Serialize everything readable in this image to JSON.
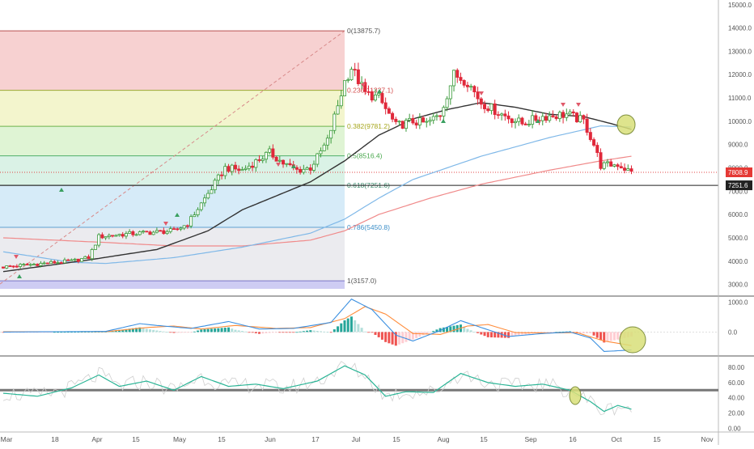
{
  "chart_data": [
    {
      "type": "candlestick",
      "panel": "price",
      "x_labels": [
        "Mar",
        "18",
        "Apr",
        "15",
        "May",
        "15",
        "Jun",
        "17",
        "Jul",
        "15",
        "Aug",
        "15",
        "Sep",
        "16",
        "Oct",
        "15",
        "Nov"
      ],
      "yticks": [
        "3000.0",
        "4000.0",
        "5000.0",
        "6000.0",
        "7000.0",
        "8000.0",
        "9000.0",
        "10000.0",
        "11000.0",
        "12000.0",
        "13000.0",
        "14000.0",
        "15000.0"
      ],
      "ylim": [
        2500,
        15200
      ],
      "close_anchors": [
        [
          0,
          3750
        ],
        [
          10,
          3880
        ],
        [
          20,
          4000
        ],
        [
          25,
          4150
        ],
        [
          28,
          5050
        ],
        [
          35,
          5150
        ],
        [
          45,
          5250
        ],
        [
          50,
          5300
        ],
        [
          54,
          5600
        ],
        [
          60,
          6900
        ],
        [
          65,
          8000
        ],
        [
          70,
          7900
        ],
        [
          78,
          8650
        ],
        [
          82,
          8200
        ],
        [
          86,
          7900
        ],
        [
          90,
          8000
        ],
        [
          95,
          9150
        ],
        [
          100,
          11700
        ],
        [
          102,
          12300
        ],
        [
          106,
          11200
        ],
        [
          110,
          11000
        ],
        [
          115,
          9800
        ],
        [
          120,
          10000
        ],
        [
          124,
          9900
        ],
        [
          128,
          10300
        ],
        [
          132,
          12000
        ],
        [
          136,
          11700
        ],
        [
          140,
          10800
        ],
        [
          146,
          10300
        ],
        [
          152,
          9900
        ],
        [
          158,
          10200
        ],
        [
          165,
          10300
        ],
        [
          170,
          10000
        ],
        [
          173,
          9000
        ],
        [
          175,
          8100
        ],
        [
          180,
          8150
        ],
        [
          184,
          7800
        ]
      ],
      "fib_levels": [
        {
          "ratio": "0",
          "price": 13875.7,
          "label": "0(13875.7)"
        },
        {
          "ratio": "0.236",
          "price": 11327.1,
          "label": "0.236(11327.1)"
        },
        {
          "ratio": "0.382",
          "price": 9781.2,
          "label": "0.382(9781.2)"
        },
        {
          "ratio": "0.5",
          "price": 8516.4,
          "label": "0.5(8516.4)"
        },
        {
          "ratio": "0.618",
          "price": 7251.6,
          "label": "0.618(7251.6)"
        },
        {
          "ratio": "0.786",
          "price": 5450.8,
          "label": "0.786(5450.8)"
        },
        {
          "ratio": "1",
          "price": 3157.0,
          "label": "1(3157.0)"
        }
      ],
      "price_labels": {
        "current": "7808.9",
        "fib_618": "7251.6"
      },
      "ma_black_anchors": [
        [
          0,
          3550
        ],
        [
          25,
          4050
        ],
        [
          45,
          4500
        ],
        [
          60,
          5300
        ],
        [
          70,
          6200
        ],
        [
          80,
          6800
        ],
        [
          90,
          7400
        ],
        [
          100,
          8300
        ],
        [
          110,
          9400
        ],
        [
          120,
          10100
        ],
        [
          130,
          10500
        ],
        [
          140,
          10800
        ],
        [
          150,
          10600
        ],
        [
          160,
          10300
        ],
        [
          170,
          10200
        ],
        [
          178,
          9900
        ],
        [
          184,
          9650
        ]
      ],
      "ma_blue_anchors": [
        [
          0,
          4400
        ],
        [
          20,
          3950
        ],
        [
          30,
          3900
        ],
        [
          50,
          4150
        ],
        [
          70,
          4600
        ],
        [
          90,
          5200
        ],
        [
          100,
          5800
        ],
        [
          110,
          6700
        ],
        [
          120,
          7500
        ],
        [
          140,
          8500
        ],
        [
          160,
          9300
        ],
        [
          175,
          9800
        ],
        [
          184,
          9750
        ]
      ],
      "ma_red_anchors": [
        [
          0,
          5000
        ],
        [
          30,
          4800
        ],
        [
          50,
          4650
        ],
        [
          70,
          4650
        ],
        [
          90,
          4900
        ],
        [
          100,
          5300
        ],
        [
          110,
          6000
        ],
        [
          125,
          6700
        ],
        [
          140,
          7300
        ],
        [
          160,
          7900
        ],
        [
          175,
          8300
        ],
        [
          184,
          8500
        ]
      ],
      "annotations": [
        "green-circle",
        "up-arrows",
        "down-arrows"
      ]
    },
    {
      "type": "histogram-line",
      "panel": "macd",
      "yticks": [
        "1000.0",
        "0.0"
      ],
      "ylim": [
        -800,
        1200
      ],
      "macd_anchors": [
        [
          0,
          0
        ],
        [
          30,
          20
        ],
        [
          40,
          280
        ],
        [
          45,
          220
        ],
        [
          55,
          120
        ],
        [
          66,
          350
        ],
        [
          75,
          100
        ],
        [
          85,
          120
        ],
        [
          96,
          320
        ],
        [
          102,
          1100
        ],
        [
          108,
          750
        ],
        [
          115,
          -100
        ],
        [
          120,
          -300
        ],
        [
          128,
          50
        ],
        [
          134,
          380
        ],
        [
          140,
          150
        ],
        [
          148,
          -150
        ],
        [
          158,
          -50
        ],
        [
          166,
          0
        ],
        [
          172,
          -200
        ],
        [
          176,
          -650
        ],
        [
          184,
          -600
        ]
      ],
      "signal_anchors": [
        [
          0,
          10
        ],
        [
          30,
          10
        ],
        [
          42,
          150
        ],
        [
          50,
          200
        ],
        [
          58,
          100
        ],
        [
          68,
          220
        ],
        [
          80,
          120
        ],
        [
          90,
          150
        ],
        [
          100,
          450
        ],
        [
          106,
          850
        ],
        [
          112,
          600
        ],
        [
          120,
          -50
        ],
        [
          128,
          -80
        ],
        [
          136,
          200
        ],
        [
          142,
          250
        ],
        [
          150,
          -20
        ],
        [
          160,
          -30
        ],
        [
          168,
          -20
        ],
        [
          176,
          -300
        ],
        [
          184,
          -450
        ]
      ]
    },
    {
      "type": "line",
      "panel": "rsi",
      "yticks": [
        "80.00",
        "60.00",
        "40.00",
        "20.00",
        "0.00"
      ],
      "ylim": [
        -5,
        95
      ],
      "rsi_anchors": [
        [
          0,
          46
        ],
        [
          10,
          42
        ],
        [
          20,
          53
        ],
        [
          28,
          70
        ],
        [
          34,
          55
        ],
        [
          42,
          62
        ],
        [
          50,
          50
        ],
        [
          58,
          68
        ],
        [
          66,
          55
        ],
        [
          74,
          58
        ],
        [
          82,
          52
        ],
        [
          92,
          62
        ],
        [
          100,
          82
        ],
        [
          106,
          70
        ],
        [
          112,
          42
        ],
        [
          118,
          48
        ],
        [
          126,
          47
        ],
        [
          134,
          72
        ],
        [
          142,
          60
        ],
        [
          150,
          55
        ],
        [
          158,
          58
        ],
        [
          166,
          50
        ],
        [
          172,
          35
        ],
        [
          176,
          22
        ],
        [
          180,
          30
        ],
        [
          184,
          25
        ]
      ],
      "level_line": 50
    }
  ]
}
